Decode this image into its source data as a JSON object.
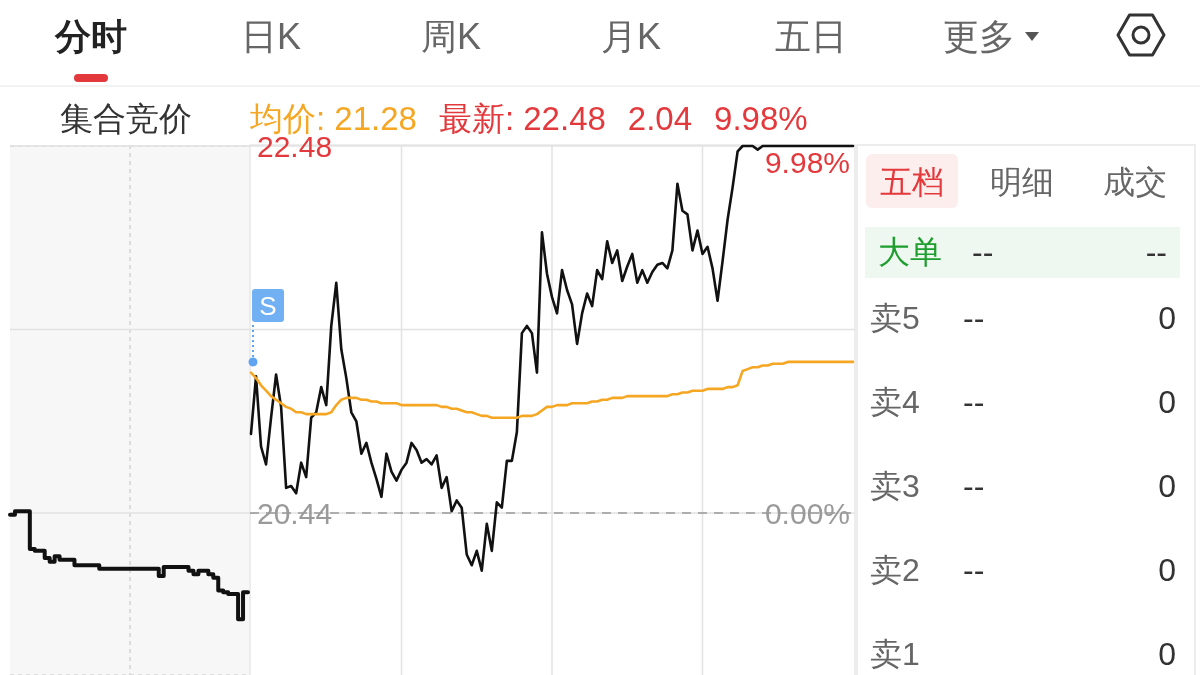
{
  "chart_data": [
    {
      "type": "other",
      "annotations": [
        "分时",
        "日K",
        "周K",
        "月K",
        "五日",
        "更多"
      ]
    },
    {
      "type": "step",
      "title": "集合竞价",
      "grid": true,
      "tick_labels": false,
      "color": "#111111",
      "categories": [
        null,
        null,
        null,
        null,
        null,
        null,
        null,
        null,
        null,
        null,
        null,
        null,
        null,
        null,
        null,
        null,
        null,
        null,
        null,
        null,
        null,
        null,
        null,
        null,
        null,
        null,
        null,
        null,
        null,
        null,
        null,
        null,
        null,
        null,
        null,
        null,
        null,
        null,
        null,
        null,
        null,
        null,
        null,
        null,
        null,
        null,
        null,
        null,
        null
      ],
      "values": [
        20.43,
        20.45,
        20.45,
        20.45,
        20.24,
        20.23,
        20.23,
        20.19,
        20.17,
        20.2,
        20.18,
        20.18,
        20.18,
        20.15,
        20.15,
        20.15,
        20.15,
        20.15,
        20.13,
        20.13,
        20.13,
        20.13,
        20.13,
        20.13,
        20.13,
        20.13,
        20.13,
        20.13,
        20.13,
        20.13,
        20.09,
        20.14,
        20.14,
        20.14,
        20.14,
        20.14,
        20.12,
        20.1,
        20.12,
        20.12,
        20.1,
        20.08,
        20.01,
        20.0,
        19.99,
        19.99,
        19.85,
        20.0,
        20.0
      ],
      "ylim": [
        19.54,
        22.48
      ]
    },
    {
      "type": "line",
      "grid": true,
      "annotations": [
        "均价: 21.28",
        "最新: 22.48",
        "2.04",
        "9.98%",
        "S",
        {
          "text": "9.98%",
          "y": 22.48
        },
        {
          "text": "0.00%",
          "y": 20.44
        }
      ],
      "categories": [
        null,
        null,
        null,
        null,
        null,
        null,
        null,
        null,
        null,
        null,
        null,
        null,
        null,
        null,
        null,
        null,
        null,
        null,
        null,
        null,
        null,
        null,
        null,
        null,
        null,
        null,
        null,
        null,
        null,
        null,
        null,
        null,
        null,
        null,
        null,
        null,
        null,
        null,
        null,
        null,
        null,
        null,
        null,
        null,
        null,
        null,
        null,
        null,
        null,
        null,
        null,
        null,
        null,
        null,
        null,
        null,
        null,
        null,
        null,
        null,
        null,
        null,
        null,
        null,
        null,
        null,
        null,
        null,
        null,
        null,
        null,
        null,
        null,
        null,
        null,
        null,
        null,
        null,
        null,
        null,
        null,
        null,
        null,
        null,
        null,
        null,
        null,
        null,
        null,
        null,
        null,
        null,
        null,
        null,
        null,
        null,
        null,
        null,
        null,
        null,
        null,
        null,
        null,
        null,
        null,
        null,
        null,
        null,
        null,
        null,
        null,
        null,
        null,
        null,
        null,
        null,
        null,
        null,
        null,
        null,
        null
      ],
      "series": [
        {
          "color": "#111111",
          "values": [
            20.88,
            21.2,
            20.81,
            20.71,
            20.97,
            21.21,
            21.03,
            20.58,
            20.59,
            20.55,
            20.72,
            20.64,
            20.97,
            21.0,
            21.14,
            21.04,
            21.48,
            21.72,
            21.35,
            21.19,
            21.0,
            20.95,
            20.77,
            20.83,
            20.72,
            20.63,
            20.53,
            20.77,
            20.67,
            20.62,
            20.68,
            20.72,
            20.83,
            20.79,
            20.72,
            20.74,
            20.71,
            20.76,
            20.58,
            20.64,
            20.45,
            20.51,
            20.47,
            20.21,
            20.15,
            20.23,
            20.12,
            20.38,
            20.23,
            20.5,
            20.47,
            20.73,
            20.73,
            20.89,
            21.44,
            21.48,
            21.44,
            21.22,
            22.0,
            21.77,
            21.64,
            21.55,
            21.79,
            21.68,
            21.6,
            21.38,
            21.55,
            21.66,
            21.59,
            21.79,
            21.74,
            21.95,
            21.83,
            21.9,
            21.73,
            21.81,
            21.88,
            21.72,
            21.79,
            21.72,
            21.78,
            21.82,
            21.83,
            21.8,
            21.9,
            22.27,
            22.12,
            22.1,
            21.9,
            22.01,
            21.88,
            21.92,
            21.8,
            21.62,
            21.84,
            22.07,
            22.25,
            22.45,
            22.48,
            22.48,
            22.48,
            22.46,
            22.48,
            22.48,
            22.48,
            22.48,
            22.48,
            22.48,
            22.48,
            22.48,
            22.48,
            22.48,
            22.48,
            22.48,
            22.48,
            22.48,
            22.48,
            22.48,
            22.48,
            22.48,
            22.48
          ]
        },
        {
          "color": "#f5a623",
          "values": [
            21.22,
            21.19,
            21.15,
            21.12,
            21.09,
            21.07,
            21.05,
            21.03,
            21.02,
            21.0,
            21.0,
            20.99,
            20.99,
            20.99,
            20.99,
            20.99,
            21.0,
            21.04,
            21.07,
            21.08,
            21.08,
            21.08,
            21.07,
            21.07,
            21.06,
            21.06,
            21.05,
            21.05,
            21.05,
            21.05,
            21.04,
            21.04,
            21.04,
            21.04,
            21.04,
            21.04,
            21.04,
            21.04,
            21.03,
            21.03,
            21.02,
            21.02,
            21.01,
            21.0,
            21.0,
            20.99,
            20.98,
            20.98,
            20.97,
            20.97,
            20.97,
            20.97,
            20.97,
            20.97,
            20.98,
            20.98,
            20.98,
            20.99,
            21.01,
            21.03,
            21.03,
            21.04,
            21.04,
            21.04,
            21.05,
            21.05,
            21.05,
            21.05,
            21.06,
            21.06,
            21.07,
            21.07,
            21.08,
            21.08,
            21.08,
            21.09,
            21.09,
            21.09,
            21.09,
            21.09,
            21.09,
            21.09,
            21.09,
            21.09,
            21.1,
            21.1,
            21.11,
            21.11,
            21.12,
            21.12,
            21.12,
            21.13,
            21.13,
            21.13,
            21.13,
            21.14,
            21.14,
            21.15,
            21.23,
            21.24,
            21.25,
            21.25,
            21.26,
            21.26,
            21.27,
            21.27,
            21.27,
            21.28,
            21.28,
            21.28,
            21.28,
            21.28,
            21.28,
            21.28,
            21.28,
            21.28,
            21.28,
            21.28,
            21.28,
            21.28,
            21.28
          ]
        }
      ],
      "ylim": [
        19.54,
        22.48
      ],
      "yticks": [
        22.48,
        {
          "value": 21.46,
          "label": null
        },
        20.44
      ],
      "ref_lines": [
        {
          "axis": "y",
          "value": 20.44,
          "color": "#999999",
          "line_style": "dashed"
        }
      ]
    },
    {
      "type": "other",
      "annotations": [
        "五档",
        "明细",
        "成交",
        "大单",
        "--",
        "--",
        "卖5",
        "--",
        "0",
        "卖4",
        "--",
        "0",
        "卖3",
        "--",
        "0",
        "卖2",
        "--",
        "0",
        "卖1",
        "0"
      ]
    }
  ]
}
